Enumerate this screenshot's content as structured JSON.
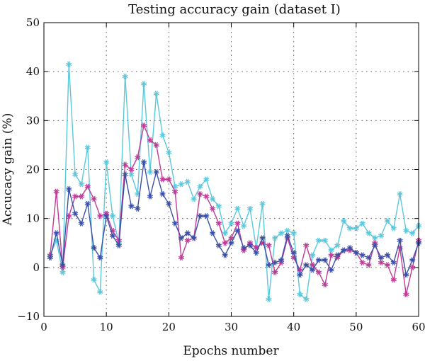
{
  "chart_data": {
    "type": "line",
    "title": "Testing accuracy gain (dataset I)",
    "xlabel": "Epochs number",
    "ylabel": "Accucacy gain (%)",
    "xlim": [
      0,
      60
    ],
    "ylim": [
      -10,
      50
    ],
    "xticks": [
      0,
      10,
      20,
      30,
      40,
      50,
      60
    ],
    "yticks": [
      -10,
      0,
      10,
      20,
      30,
      40,
      50
    ],
    "grid": true,
    "x": [
      1,
      2,
      3,
      4,
      5,
      6,
      7,
      8,
      9,
      10,
      11,
      12,
      13,
      14,
      15,
      16,
      17,
      18,
      19,
      20,
      21,
      22,
      23,
      24,
      25,
      26,
      27,
      28,
      29,
      30,
      31,
      32,
      33,
      34,
      35,
      36,
      37,
      38,
      39,
      40,
      41,
      42,
      43,
      44,
      45,
      46,
      47,
      48,
      49,
      50,
      51,
      52,
      53,
      54,
      55,
      56,
      57,
      58,
      59,
      60
    ],
    "series": [
      {
        "color": "#5bc8dc",
        "marker": "asterisk",
        "values": [
          2.5,
          5.5,
          -1,
          41.5,
          19,
          17,
          24.5,
          -2.5,
          -5,
          21.5,
          10.5,
          5,
          39,
          19,
          15,
          37.5,
          19.5,
          35.5,
          27,
          23.5,
          16.5,
          17,
          17.5,
          14,
          16.5,
          18,
          14,
          12.5,
          7,
          9,
          12,
          8.5,
          12,
          4,
          13,
          -6.5,
          6,
          7,
          7.5,
          7,
          -5.5,
          -6.5,
          2.5,
          5.5,
          5.5,
          3.5,
          4.5,
          9.5,
          8,
          8,
          9,
          7,
          6,
          6.5,
          9.5,
          8,
          15,
          7.5,
          7,
          8.5
        ]
      },
      {
        "color": "#c03a98",
        "marker": "asterisk",
        "values": [
          2.5,
          15.5,
          0,
          10.5,
          14.5,
          14.5,
          16.5,
          14,
          10.5,
          11,
          7.5,
          5.5,
          21,
          20,
          22.5,
          29,
          26,
          25,
          18,
          18,
          15.5,
          2,
          5.5,
          6,
          15,
          14.5,
          12,
          9,
          5,
          6,
          9,
          3.5,
          5,
          4,
          5,
          4.5,
          -1,
          1,
          6,
          2,
          -0.5,
          4.5,
          0.5,
          -1,
          -3.5,
          2.5,
          2,
          3.5,
          3.5,
          3,
          1,
          0.5,
          5,
          1,
          0.5,
          -2.5,
          4,
          -5.5,
          0,
          5.5
        ]
      },
      {
        "color": "#3a4fa8",
        "marker": "asterisk",
        "values": [
          2,
          7,
          0.5,
          16,
          11,
          9,
          13,
          4,
          2,
          10.5,
          6.5,
          4.5,
          19,
          12.5,
          12,
          21.5,
          14.5,
          19.5,
          15,
          13,
          9,
          6,
          7,
          6,
          10.5,
          10.5,
          7,
          4.5,
          2.5,
          5,
          7.5,
          4,
          4.5,
          3,
          6,
          0.5,
          1,
          1.5,
          6.5,
          3,
          -1.5,
          0.5,
          -0.5,
          1.5,
          1.5,
          -0.5,
          2.5,
          3.5,
          4,
          3,
          2.5,
          2,
          4.5,
          2,
          2.5,
          1,
          5.5,
          -1.5,
          1.5,
          5
        ]
      }
    ]
  }
}
